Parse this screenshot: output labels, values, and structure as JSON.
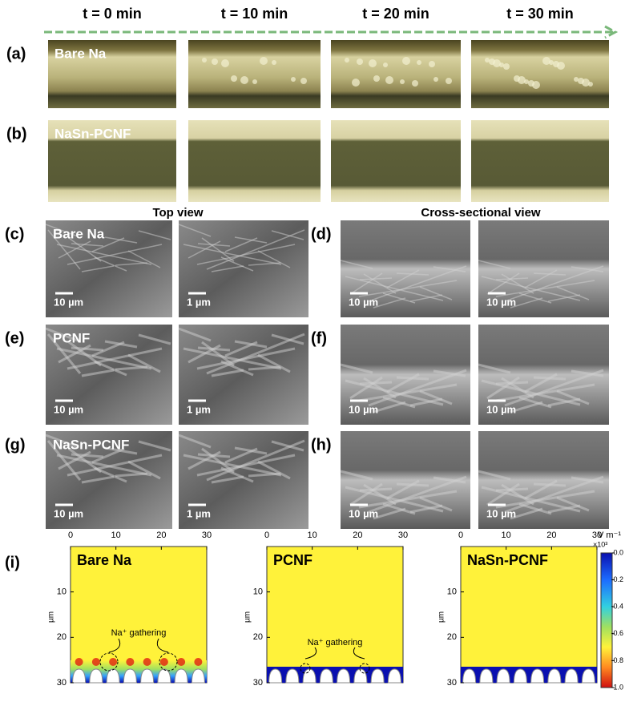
{
  "time_labels": [
    "t = 0 min",
    "t = 10 min",
    "t = 20 min",
    "t = 30 min"
  ],
  "rows": [
    {
      "label": "(a)",
      "sample": "Bare Na"
    },
    {
      "label": "(b)",
      "sample": "NaSn-PCNF"
    }
  ],
  "view_headers": [
    "Top view",
    "Cross-sectional view"
  ],
  "sem": [
    {
      "label_top": "(c)",
      "label_cross": "(d)",
      "sample": "Bare Na",
      "scales": [
        "10 µm",
        "1 µm",
        "10 µm",
        "10 µm"
      ]
    },
    {
      "label_top": "(e)",
      "label_cross": "(f)",
      "sample": "PCNF",
      "scales": [
        "10 µm",
        "1 µm",
        "10 µm",
        "10 µm"
      ]
    },
    {
      "label_top": "(g)",
      "label_cross": "(h)",
      "sample": "NaSn-PCNF",
      "scales": [
        "10 µm",
        "1 µm",
        "10 µm",
        "10 µm"
      ]
    }
  ],
  "simulation": {
    "label": "(i)",
    "panels": [
      {
        "title": "Bare Na",
        "annotation": "Na⁺ gathering"
      },
      {
        "title": "PCNF",
        "annotation": "Na⁺ gathering"
      },
      {
        "title": "NaSn-PCNF"
      }
    ],
    "xlim": [
      0,
      30
    ],
    "ylim": [
      0,
      30
    ],
    "xticks": [
      0,
      10,
      20,
      30
    ],
    "yticks": [
      10,
      20,
      30
    ],
    "ylabel": "µm",
    "colorbar": {
      "unit": "V m⁻¹",
      "multiplier": "×10³",
      "lim": [
        -1,
        0
      ],
      "ticks": [
        {
          "value": 0,
          "label": "0.0"
        },
        {
          "value": -0.2,
          "label": "-0.2"
        },
        {
          "value": -0.4,
          "label": "-0.4"
        },
        {
          "value": -0.6,
          "label": "-0.6"
        },
        {
          "value": -0.8,
          "label": "-0.8"
        },
        {
          "value": -1,
          "label": "-1.0"
        }
      ]
    }
  }
}
